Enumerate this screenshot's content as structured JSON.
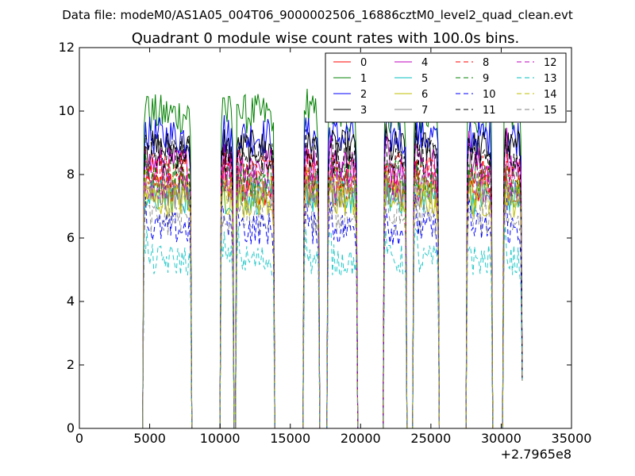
{
  "chart_data": {
    "type": "line",
    "suptitle": "Data file: modeM0/AS1A05_004T06_9000002506_16886cztM0_level2_quad_clean.evt",
    "title": "Quadrant 0 module wise count rates with 100.0s bins.",
    "xlabel": "",
    "ylabel": "",
    "xlim": [
      0,
      35000
    ],
    "ylim": [
      0,
      12
    ],
    "x_offset_label": "+2.7965e8",
    "xticks": [
      "0",
      "5000",
      "10000",
      "15000",
      "20000",
      "25000",
      "30000",
      "35000"
    ],
    "yticks": [
      "0",
      "2",
      "4",
      "6",
      "8",
      "10",
      "12"
    ],
    "legend_position": "top-right",
    "data_segments": [
      [
        4600,
        7900
      ],
      [
        10100,
        10900
      ],
      [
        11200,
        13800
      ],
      [
        16000,
        17000
      ],
      [
        17700,
        19700
      ],
      [
        21700,
        23200
      ],
      [
        23800,
        25500
      ],
      [
        27600,
        29300
      ],
      [
        30200,
        31400
      ]
    ],
    "series": [
      {
        "name": "0",
        "color": "#ff0000",
        "dash": "solid",
        "level": 7.6
      },
      {
        "name": "1",
        "color": "#008000",
        "dash": "solid",
        "level": 9.9
      },
      {
        "name": "2",
        "color": "#0000ff",
        "dash": "solid",
        "level": 9.2
      },
      {
        "name": "3",
        "color": "#000000",
        "dash": "solid",
        "level": 8.8
      },
      {
        "name": "4",
        "color": "#bf00bf",
        "dash": "solid",
        "level": 8.3
      },
      {
        "name": "5",
        "color": "#00bfbf",
        "dash": "solid",
        "level": 7.3
      },
      {
        "name": "6",
        "color": "#bfbf00",
        "dash": "solid",
        "level": 7.2
      },
      {
        "name": "7",
        "color": "#808080",
        "dash": "solid",
        "level": 7.5
      },
      {
        "name": "8",
        "color": "#ff0000",
        "dash": "dashed",
        "level": 8.1
      },
      {
        "name": "9",
        "color": "#008000",
        "dash": "dashed",
        "level": 7.9
      },
      {
        "name": "10",
        "color": "#0000ff",
        "dash": "dashed",
        "level": 6.3
      },
      {
        "name": "11",
        "color": "#000000",
        "dash": "dashed",
        "level": 8.6
      },
      {
        "name": "12",
        "color": "#bf00bf",
        "dash": "dashed",
        "level": 7.7
      },
      {
        "name": "13",
        "color": "#00bfbf",
        "dash": "dashed",
        "level": 5.3
      },
      {
        "name": "14",
        "color": "#bfbf00",
        "dash": "dashed",
        "level": 7.4
      },
      {
        "name": "15",
        "color": "#808080",
        "dash": "dashed",
        "level": 6.6
      }
    ]
  }
}
